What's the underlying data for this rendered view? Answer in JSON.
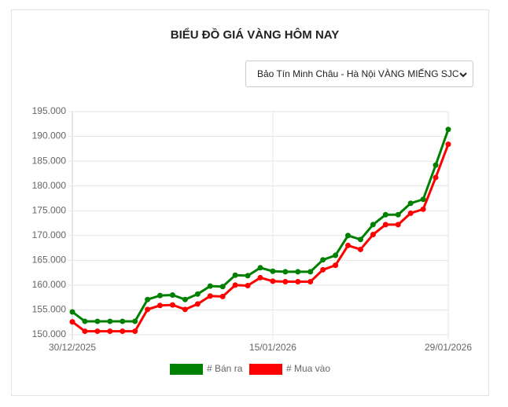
{
  "chart_data": {
    "type": "line",
    "title": "BIỂU ĐỒ GIÁ VÀNG HÔM NAY",
    "selector": "Bảo Tín Minh Châu - Hà Nội VÀNG MIẾNG SJC",
    "categories": [
      "30/12/2025",
      null,
      null,
      null,
      null,
      null,
      null,
      null,
      null,
      null,
      null,
      null,
      null,
      null,
      null,
      null,
      "15/01/2026",
      null,
      null,
      null,
      null,
      null,
      null,
      null,
      null,
      null,
      null,
      null,
      null,
      null,
      "29/01/2026"
    ],
    "series": [
      {
        "name": "# Bán ra",
        "color": "#008000",
        "values": [
          154600,
          152700,
          152700,
          152700,
          152700,
          152700,
          157100,
          157900,
          158000,
          157100,
          158200,
          159800,
          159700,
          162000,
          161900,
          163500,
          162800,
          162700,
          162700,
          162700,
          165100,
          166000,
          170000,
          169200,
          172200,
          174200,
          174200,
          176500,
          177300,
          184200,
          191400
        ]
      },
      {
        "name": "# Mua vào",
        "color": "#ff0000",
        "values": [
          152600,
          150700,
          150700,
          150700,
          150700,
          150700,
          155100,
          155900,
          156000,
          155100,
          156200,
          157800,
          157700,
          160000,
          159900,
          161500,
          160800,
          160700,
          160700,
          160700,
          163100,
          164000,
          168000,
          167200,
          170200,
          172200,
          172200,
          174500,
          175300,
          181700,
          188400
        ]
      }
    ],
    "ylim": [
      150000,
      195000
    ],
    "yticks": [
      {
        "value": 150000,
        "label": "150.000"
      },
      {
        "value": 155000,
        "label": "155.000"
      },
      {
        "value": 160000,
        "label": "160.000"
      },
      {
        "value": 165000,
        "label": "165.000"
      },
      {
        "value": 170000,
        "label": "170.000"
      },
      {
        "value": 175000,
        "label": "175.000"
      },
      {
        "value": 180000,
        "label": "180.000"
      },
      {
        "value": 185000,
        "label": "185.000"
      },
      {
        "value": 190000,
        "label": "190.000"
      },
      {
        "value": 195000,
        "label": "195.000"
      }
    ],
    "grid": true
  }
}
